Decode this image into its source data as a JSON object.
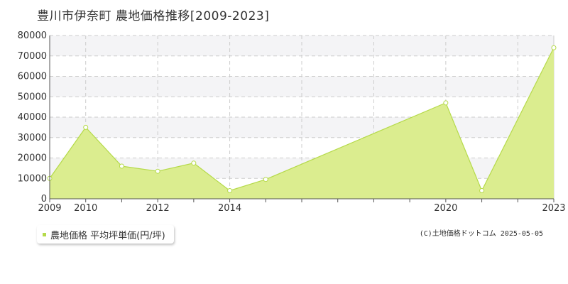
{
  "title": "豊川市伊奈町 農地価格推移[2009-2023]",
  "legend": {
    "label": "農地価格 平均坪単価(円/坪)"
  },
  "copyright": "(C)土地価格ドットコム 2025-05-05",
  "colors": {
    "fill": "#dbed8f",
    "line": "#b5da4a",
    "marker_fill": "#ffffff",
    "grid": "#cccccc",
    "band": "#f4f4f6"
  },
  "chart_data": {
    "type": "area",
    "x": [
      2009,
      2010,
      2011,
      2012,
      2013,
      2014,
      2015,
      2020,
      2021,
      2023
    ],
    "series": [
      {
        "name": "農地価格 平均坪単価(円/坪)",
        "values": [
          10000,
          35000,
          16000,
          13500,
          17500,
          4000,
          9500,
          47000,
          4000,
          74000
        ]
      }
    ],
    "x_tick_labels": [
      "2009",
      "2010",
      "2012",
      "2014",
      "2020",
      "2023"
    ],
    "y_tick_labels": [
      "0",
      "10000",
      "20000",
      "30000",
      "40000",
      "50000",
      "60000",
      "70000",
      "80000"
    ],
    "ylim": [
      0,
      80000
    ],
    "grid": true,
    "alternating_bands": true
  }
}
